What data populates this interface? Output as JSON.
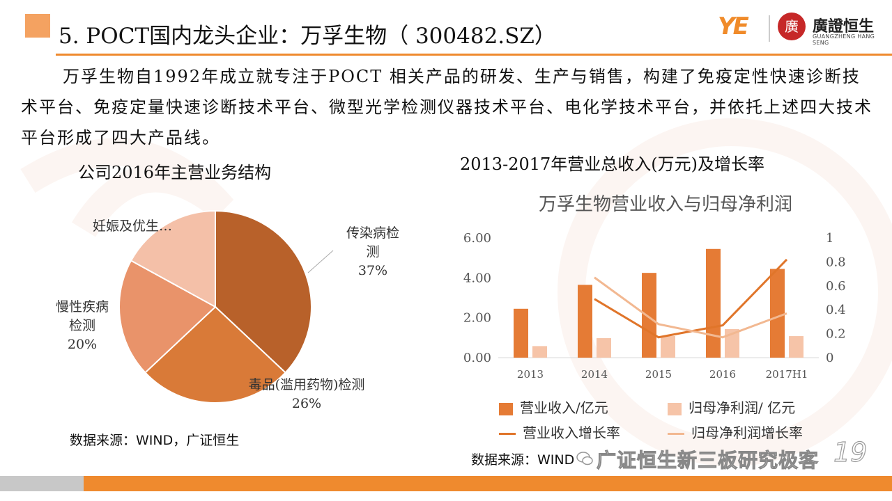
{
  "header": {
    "title": "5. POCT国内龙头企业：万孚生物（ 300482.SZ）",
    "logo_text": "YE",
    "brand_cn": "廣證恒生",
    "brand_en": "GUANGZHENG HANG SENG",
    "seal_char": "廣"
  },
  "intro": "万孚生物自1992年成立就专注于POCT 相关产品的研发、生产与销售，构建了免疫定性快速诊断技术平台、免疫定量快速诊断技术平台、微型光学检测仪器技术平台、电化学技术平台，并依托上述四大技术平台形成了四大产品线。",
  "pie_section": {
    "title": "公司2016年主营业务结构",
    "source": "数据来源：WIND，广证恒生"
  },
  "bar_section": {
    "title": "2013-2017年营业总收入(万元)及增长率",
    "source": "数据来源：WIND",
    "wechat_text": "广证恒生新三板研究极客",
    "page_number": "19"
  },
  "colors": {
    "accent": "#ef8a2e",
    "revenue_bar": "#e57b35",
    "profit_bar": "#f6c4a8",
    "revenue_growth": "#e0752a",
    "profit_growth": "#f2b891",
    "pie_infectious": "#b8612a",
    "pie_drug": "#d97a38",
    "pie_chronic": "#e9936a",
    "pie_pregnancy": "#f4c0a8"
  },
  "chart_data": [
    {
      "type": "pie",
      "title": "公司2016年主营业务结构",
      "slices": [
        {
          "label": "传染病检测",
          "display": [
            "传染病检",
            "测"
          ],
          "percent_text": "37%",
          "value": 37,
          "color": "#b8612a"
        },
        {
          "label": "毒品(滥用药物)检测",
          "display": [
            "毒品(滥用药物)检测"
          ],
          "percent_text": "26%",
          "value": 26,
          "color": "#d97a38"
        },
        {
          "label": "慢性疾病检测",
          "display": [
            "慢性疾病",
            "检测"
          ],
          "percent_text": "20%",
          "value": 20,
          "color": "#e9936a"
        },
        {
          "label": "妊娠及优生…",
          "display": [
            "妊娠及优生…"
          ],
          "percent_text": "",
          "value": 17,
          "color": "#f4c0a8"
        }
      ]
    },
    {
      "type": "bar",
      "title": "万孚生物营业收入与归母净利润",
      "categories": [
        "2013",
        "2014",
        "2015",
        "2016",
        "2017H1"
      ],
      "series": [
        {
          "name": "营业收入/亿元",
          "kind": "bar",
          "axis": "left",
          "values": [
            2.45,
            3.65,
            4.25,
            5.45,
            4.45
          ],
          "color": "#e57b35"
        },
        {
          "name": "归母净利润/ 亿元",
          "kind": "bar",
          "axis": "left",
          "values": [
            0.58,
            0.98,
            1.08,
            1.43,
            1.08
          ],
          "color": "#f6c4a8"
        },
        {
          "name": "营业收入增长率",
          "kind": "line",
          "axis": "right",
          "values": [
            null,
            0.49,
            0.17,
            0.27,
            0.82
          ],
          "color": "#e0752a"
        },
        {
          "name": "归母净利润增长率",
          "kind": "line",
          "axis": "right",
          "values": [
            null,
            0.67,
            0.28,
            0.17,
            0.37
          ],
          "color": "#f2b891"
        }
      ],
      "y_left": {
        "min": 0,
        "max": 6,
        "ticks": [
          "0.00",
          "2.00",
          "4.00",
          "6.00"
        ]
      },
      "y_right": {
        "min": 0,
        "max": 1,
        "ticks": [
          "0",
          "0.2",
          "0.4",
          "0.6",
          "0.8",
          "1"
        ]
      },
      "legend_position": "bottom"
    }
  ]
}
